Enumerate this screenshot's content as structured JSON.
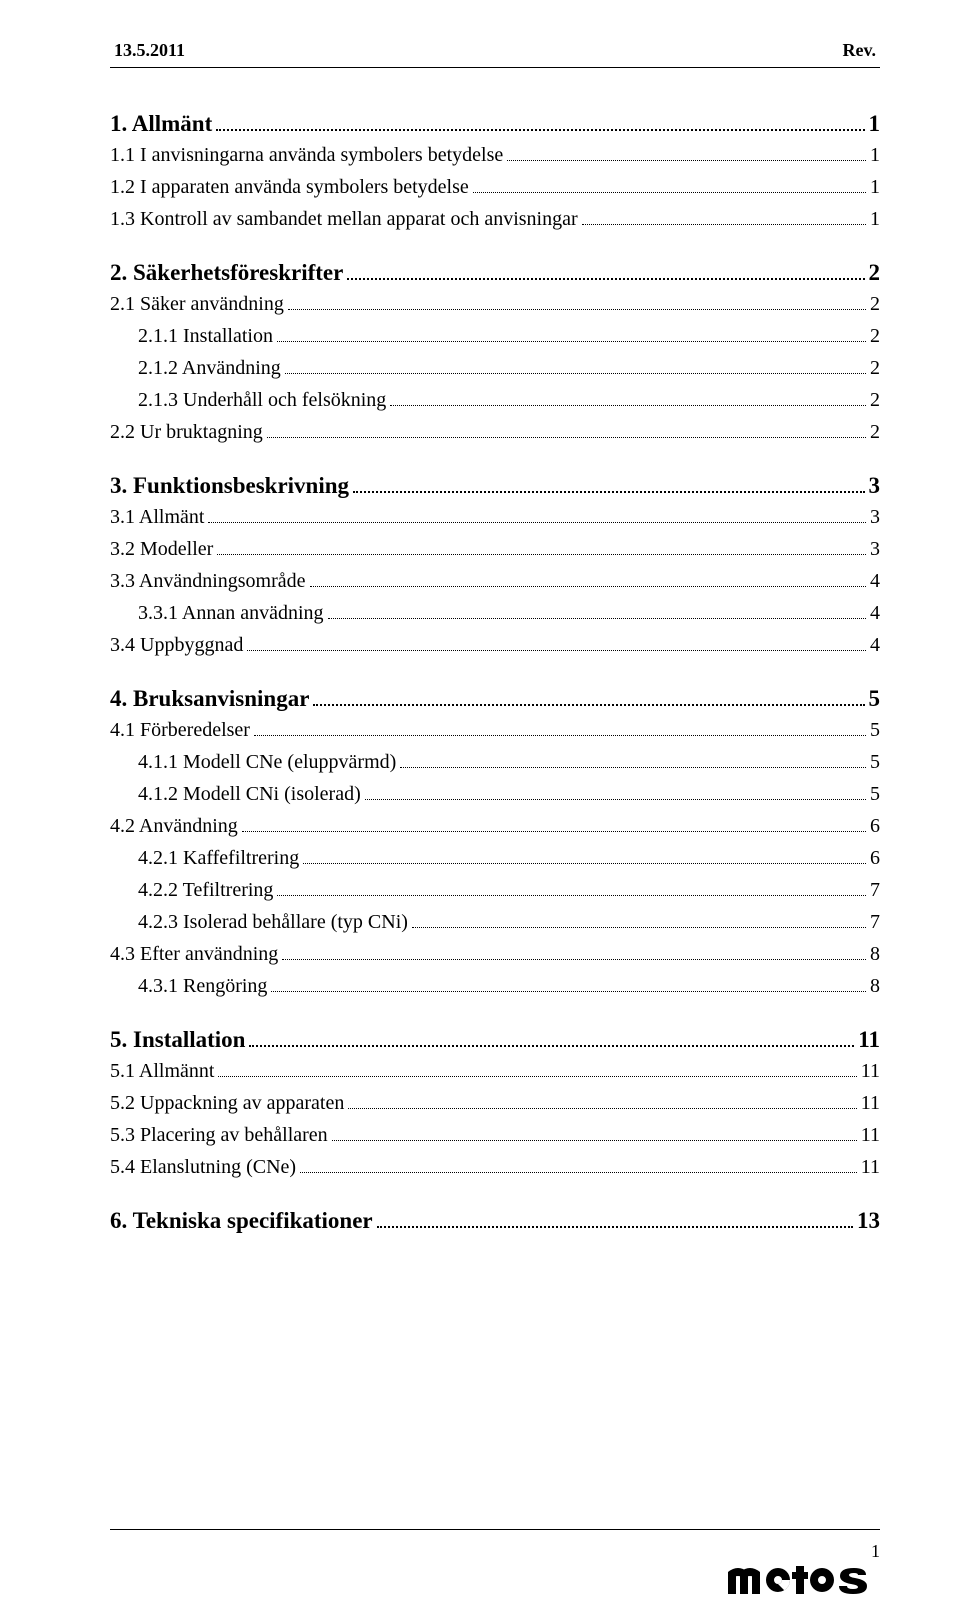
{
  "header": {
    "date": "13.5.2011",
    "rev": "Rev."
  },
  "footer": {
    "page_num": "1",
    "logo_text": "metos"
  },
  "toc": [
    {
      "level": 1,
      "label": "1. Allmänt",
      "page": "1"
    },
    {
      "level": 2,
      "label": "1.1 I anvisningarna använda symbolers betydelse",
      "page": "1"
    },
    {
      "level": 2,
      "label": "1.2 I apparaten använda symbolers betydelse",
      "page": "1"
    },
    {
      "level": 2,
      "label": "1.3 Kontroll av sambandet mellan apparat och anvisningar",
      "page": "1"
    },
    {
      "level": 1,
      "label": "2. Säkerhetsföreskrifter",
      "page": "2"
    },
    {
      "level": 2,
      "label": "2.1 Säker användning",
      "page": "2"
    },
    {
      "level": 3,
      "label": "2.1.1 Installation",
      "page": "2"
    },
    {
      "level": 3,
      "label": "2.1.2 Användning",
      "page": "2"
    },
    {
      "level": 3,
      "label": "2.1.3 Underhåll och felsökning",
      "page": "2"
    },
    {
      "level": 2,
      "label": "2.2 Ur bruktagning",
      "page": "2"
    },
    {
      "level": 1,
      "label": "3. Funktionsbeskrivning",
      "page": "3"
    },
    {
      "level": 2,
      "label": "3.1 Allmänt",
      "page": "3"
    },
    {
      "level": 2,
      "label": "3.2 Modeller",
      "page": "3"
    },
    {
      "level": 2,
      "label": "3.3 Användningsområde",
      "page": "4"
    },
    {
      "level": 3,
      "label": "3.3.1 Annan anvädning",
      "page": "4"
    },
    {
      "level": 2,
      "label": "3.4 Uppbyggnad",
      "page": "4"
    },
    {
      "level": 1,
      "label": "4. Bruksanvisningar",
      "page": "5"
    },
    {
      "level": 2,
      "label": "4.1 Förberedelser",
      "page": "5"
    },
    {
      "level": 3,
      "label": "4.1.1 Modell CNe (eluppvärmd)",
      "page": "5"
    },
    {
      "level": 3,
      "label": "4.1.2 Modell CNi (isolerad)",
      "page": "5"
    },
    {
      "level": 2,
      "label": "4.2 Användning",
      "page": "6"
    },
    {
      "level": 3,
      "label": "4.2.1 Kaffefiltrering",
      "page": "6"
    },
    {
      "level": 3,
      "label": "4.2.2 Tefiltrering",
      "page": "7"
    },
    {
      "level": 3,
      "label": "4.2.3 Isolerad behållare (typ CNi)",
      "page": "7"
    },
    {
      "level": 2,
      "label": "4.3 Efter användning",
      "page": "8"
    },
    {
      "level": 3,
      "label": "4.3.1 Rengöring",
      "page": "8"
    },
    {
      "level": 1,
      "label": "5. Installation",
      "page": "11"
    },
    {
      "level": 2,
      "label": "5.1 Allmännt",
      "page": "11"
    },
    {
      "level": 2,
      "label": "5.2 Uppackning av apparaten",
      "page": "11"
    },
    {
      "level": 2,
      "label": "5.3 Placering av behållaren",
      "page": "11"
    },
    {
      "level": 2,
      "label": "5.4 Elanslutning (CNe)",
      "page": "11"
    },
    {
      "level": 1,
      "label": "6. Tekniska specifikationer",
      "page": "13"
    }
  ]
}
